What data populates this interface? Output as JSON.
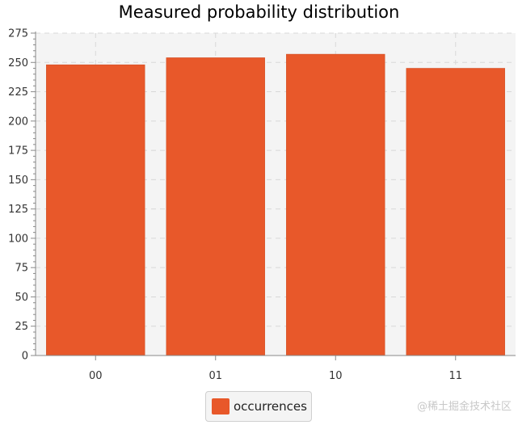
{
  "chart_data": {
    "type": "bar",
    "title": "Measured probability distribution",
    "categories": [
      "00",
      "01",
      "10",
      "11"
    ],
    "series": [
      {
        "name": "occurrences",
        "values": [
          248,
          254,
          257,
          245
        ]
      }
    ],
    "ylim": [
      0,
      275
    ],
    "yticks": [
      0,
      25,
      50,
      75,
      100,
      125,
      150,
      175,
      200,
      225,
      250,
      275
    ],
    "ytick_labels": [
      "0",
      "25",
      "50",
      "75",
      "100",
      "125",
      "150",
      "175",
      "200",
      "225",
      "250",
      "275"
    ],
    "xlabel": "",
    "ylabel": "",
    "grid": true,
    "legend_position": "bottom-center",
    "bar_color": "#e8582a",
    "plot_background": "#f4f4f4",
    "grid_color": "#d8d8d8"
  },
  "legend": {
    "label": "occurrences"
  },
  "watermark": "@稀土掘金技术社区"
}
